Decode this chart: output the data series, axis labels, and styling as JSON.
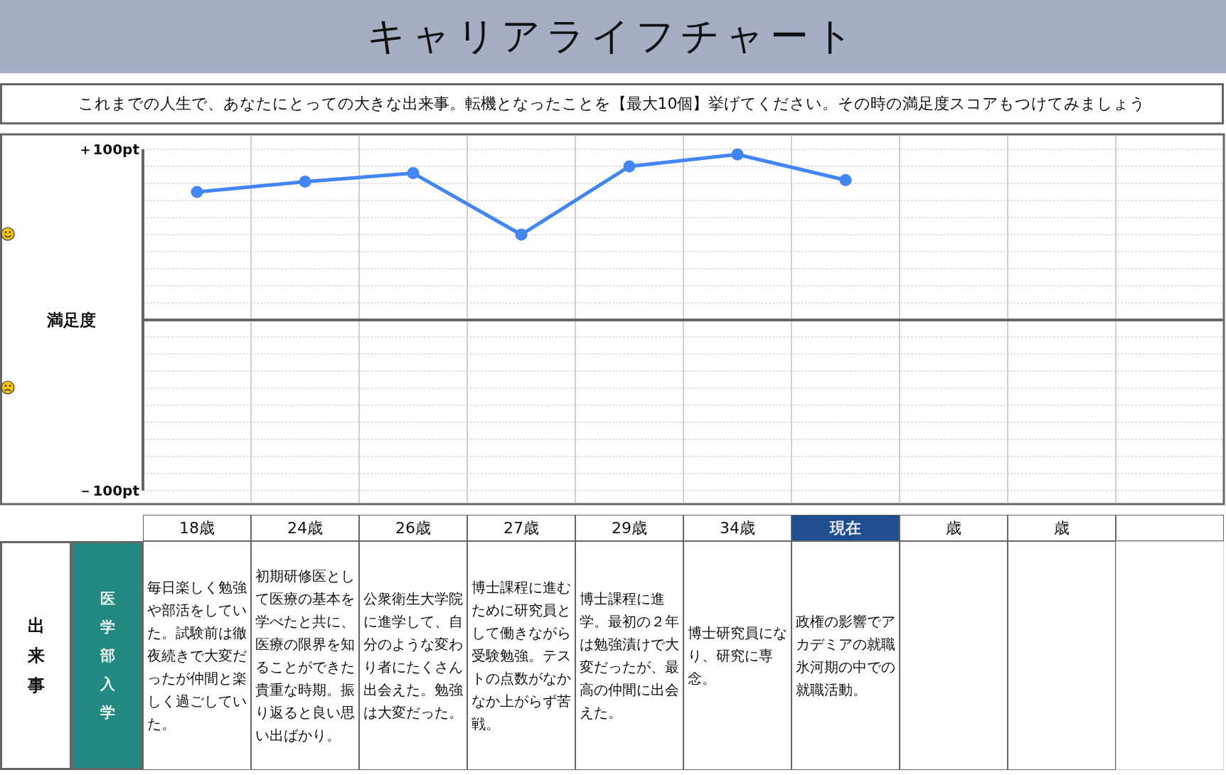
{
  "chart_data": {
    "type": "line",
    "title": "キャリアライフチャート",
    "subtitle": "これまでの人生で、あなたにとっての大きな出来事。転機となったことを【最大10個】挙げてください。その時の満足度スコアもつけてみましょう",
    "ylabel": "満足度",
    "categories": [
      "18歳",
      "24歳",
      "26歳",
      "27歳",
      "29歳",
      "34歳",
      "現在",
      "歳",
      "歳",
      null
    ],
    "values": [
      75,
      81,
      86,
      50,
      90,
      97,
      82,
      null,
      null,
      null
    ],
    "color": "#4285f4",
    "ylim": [
      -100,
      100
    ],
    "yticks": [
      {
        "value": 100,
        "label": "＋100pt"
      },
      {
        "value": 90,
        "label": null
      },
      {
        "value": 80,
        "label": null
      },
      {
        "value": 70,
        "label": null
      },
      {
        "value": 60,
        "label": null
      },
      {
        "value": 50,
        "label": null
      },
      {
        "value": 40,
        "label": null
      },
      {
        "value": 30,
        "label": null
      },
      {
        "value": 20,
        "label": null
      },
      {
        "value": 10,
        "label": null
      },
      {
        "value": -10,
        "label": null
      },
      {
        "value": -20,
        "label": null
      },
      {
        "value": -30,
        "label": null
      },
      {
        "value": -40,
        "label": null
      },
      {
        "value": -50,
        "label": null
      },
      {
        "value": -60,
        "label": null
      },
      {
        "value": -70,
        "label": null
      },
      {
        "value": -80,
        "label": null
      },
      {
        "value": -90,
        "label": null
      },
      {
        "value": -100,
        "label": "－100pt"
      }
    ],
    "grid": true,
    "marker": "circle",
    "line_style": "solid",
    "annotations": [
      "出来事",
      "医学部入学",
      "毎日楽しく勉強や部活をしていた。試験前は徹夜続きで大変だったが仲間と楽しく過ごしていた。",
      "初期研修医として医療の基本を学べたと共に、医療の限界を知ることができた貴重な時期。振り返ると良い思い出ばかり。",
      "公衆衛生大学院に進学して、自分のような変わり者にたくさん出会えた。勉強は大変だった。",
      "博士課程に進むために研究員として働きながら受験勉強。テストの点数がなかなか上がらず苦戦。",
      "博士課程に進学。最初の２年は勉強漬けで大変だったが、最高の仲間に出会えた。",
      "博士研究員になり、研究に専念。",
      "政権の影響でアカデミアの就職氷河期の中での就職活動。"
    ]
  }
}
